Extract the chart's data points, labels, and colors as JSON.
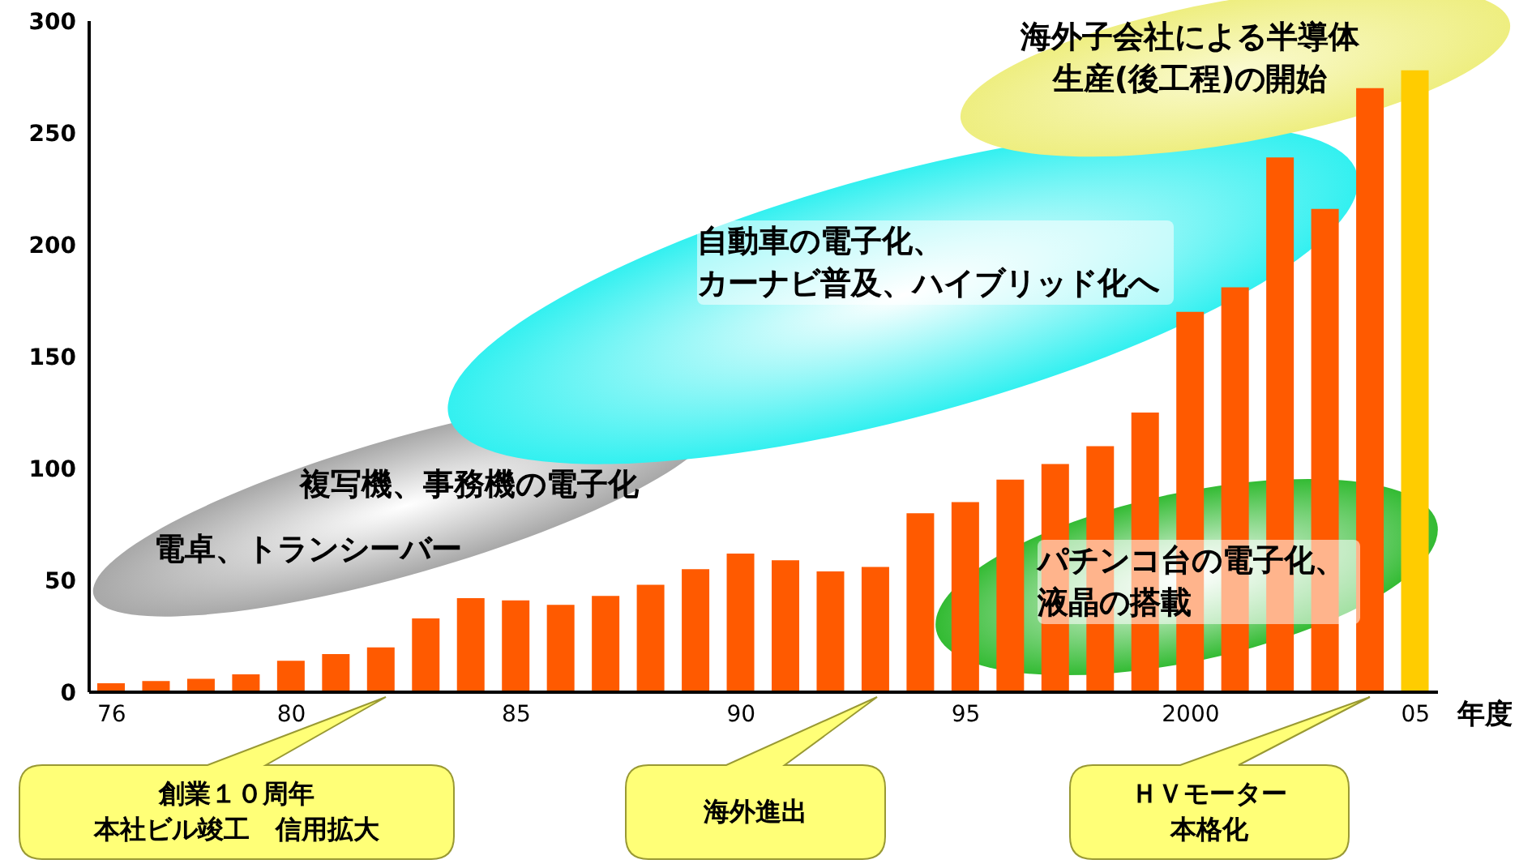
{
  "chart_data": {
    "type": "bar",
    "xlabel": "年度",
    "x": [
      1976,
      1977,
      1978,
      1979,
      1980,
      1981,
      1982,
      1983,
      1984,
      1985,
      1986,
      1987,
      1988,
      1989,
      1990,
      1991,
      1992,
      1993,
      1994,
      1995,
      1996,
      1997,
      1998,
      1999,
      2000,
      2001,
      2002,
      2003,
      2004,
      2005
    ],
    "values": [
      4,
      5,
      6,
      8,
      14,
      17,
      20,
      33,
      42,
      41,
      39,
      43,
      48,
      55,
      62,
      59,
      54,
      56,
      80,
      85,
      95,
      102,
      110,
      125,
      170,
      181,
      239,
      216,
      270,
      278
    ],
    "colors": [
      "#ff5a00",
      "#ff5a00",
      "#ff5a00",
      "#ff5a00",
      "#ff5a00",
      "#ff5a00",
      "#ff5a00",
      "#ff5a00",
      "#ff5a00",
      "#ff5a00",
      "#ff5a00",
      "#ff5a00",
      "#ff5a00",
      "#ff5a00",
      "#ff5a00",
      "#ff5a00",
      "#ff5a00",
      "#ff5a00",
      "#ff5a00",
      "#ff5a00",
      "#ff5a00",
      "#ff5a00",
      "#ff5a00",
      "#ff5a00",
      "#ff5a00",
      "#ff5a00",
      "#ff5a00",
      "#ff5a00",
      "#ff5a00",
      "#ffcc00"
    ],
    "xlim": [
      1975.5,
      2005.5
    ],
    "xticks": [
      {
        "value": 1976,
        "label": "76"
      },
      {
        "value": 1980,
        "label": "80"
      },
      {
        "value": 1985,
        "label": "85"
      },
      {
        "value": 1990,
        "label": "90"
      },
      {
        "value": 1995,
        "label": "95"
      },
      2000,
      {
        "value": 2005,
        "label": "05"
      }
    ],
    "ylim": [
      0,
      300
    ],
    "yticks": [
      0,
      50,
      100,
      150,
      200,
      250,
      300
    ],
    "annotations": [
      "電卓、トランシーバー",
      "複写機、事務機の電子化",
      "自動車の電子化、カーナビ普及、ハイブリッド化へ",
      "パチンコ台の電子化、液晶の搭載",
      "海外子会社による半導体生産(後工程)の開始",
      "創業１０周年本社ビル竣工　信用拡大",
      "海外進出",
      "ＨＶモーター本格化"
    ]
  }
}
